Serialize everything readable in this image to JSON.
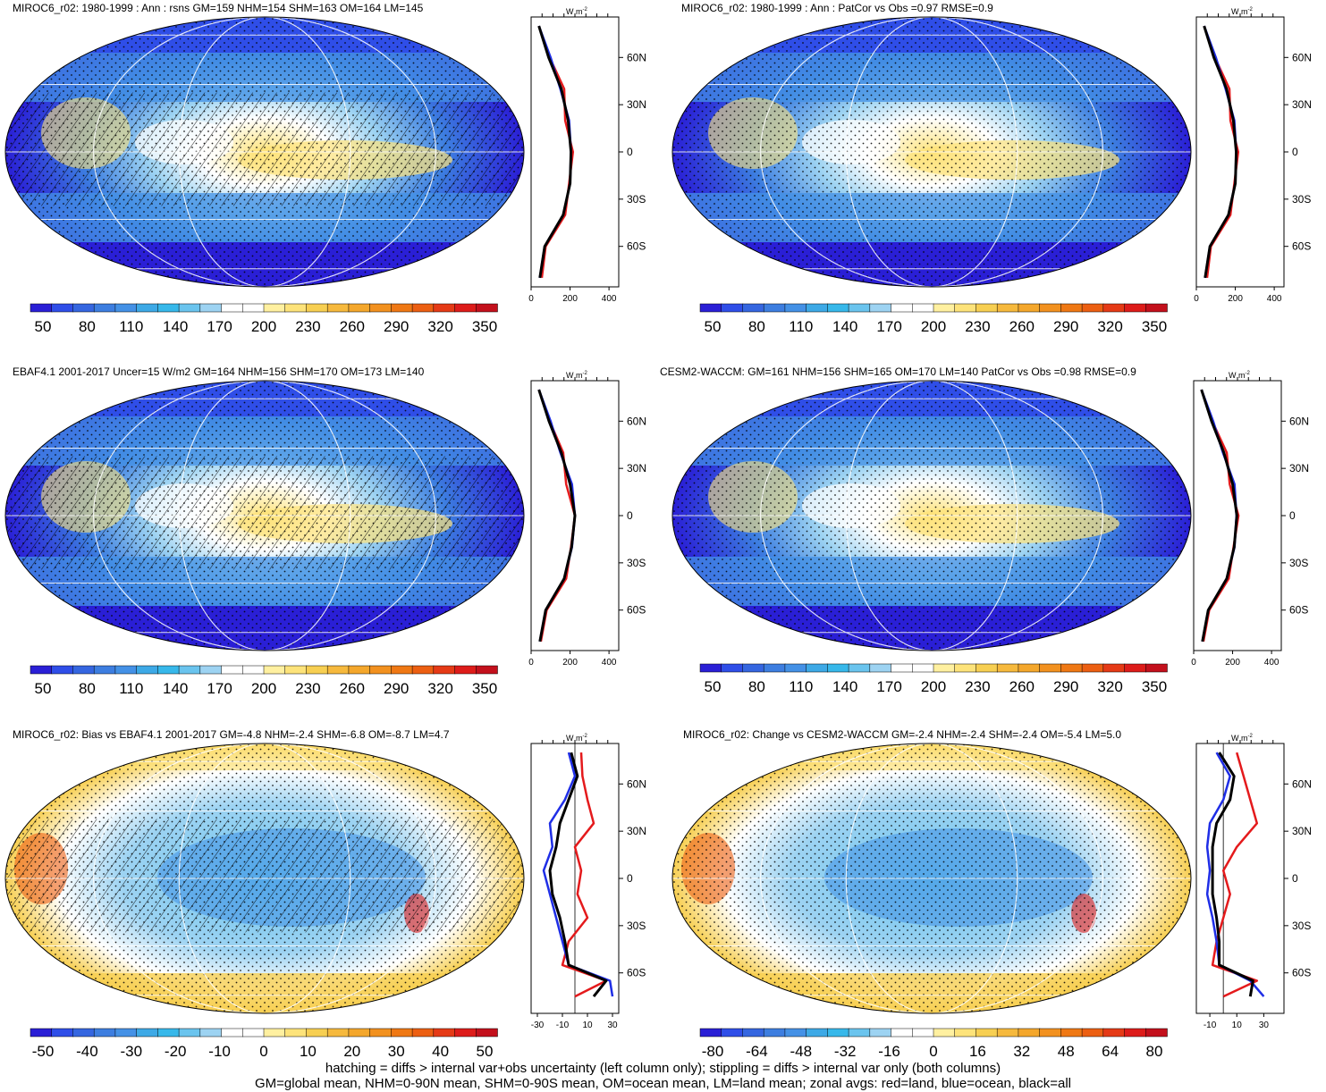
{
  "panels": [
    {
      "title": "MIROC6_r02: 1980-1999 : Ann : rsns GM=159 NHM=154 SHM=163 OM=164 LM=145",
      "kind": "clim",
      "hatch": "mid",
      "stipple": true
    },
    {
      "title": "MIROC6_r02: 1980-1999 : Ann : PatCor vs Obs =0.97 RMSE=0.9",
      "kind": "clim",
      "hatch": "none",
      "stipple": true
    },
    {
      "title": "EBAF4.1 2001-2017 Uncer=15 W/m2 GM=164 NHM=156 SHM=170 OM=173 LM=140",
      "kind": "clim",
      "hatch": "mid",
      "stipple": true
    },
    {
      "title": "CESM2-WACCM: GM=161 NHM=156 SHM=165 OM=170 LM=140 PatCor vs Obs =0.98 RMSE=0.9",
      "kind": "clim",
      "hatch": "none",
      "stipple": true
    },
    {
      "title": "MIROC6_r02: Bias vs EBAF4.1 2001-2017 GM=-4.8 NHM=-2.4 SHM=-6.8 OM=-8.7 LM=4.7",
      "kind": "diff",
      "hatch": "mid",
      "stipple": true
    },
    {
      "title": "MIROC6_r02: Change vs CESM2-WACCM GM=-2.4 NHM=-2.4 SHM=-2.4 OM=-5.4 LM=5.0",
      "kind": "diff",
      "hatch": "none",
      "stipple": true
    }
  ],
  "colorbars": {
    "clim": {
      "colors": [
        "#2a1fd6",
        "#2f4ee8",
        "#3566e0",
        "#3d7ee0",
        "#4491e6",
        "#3da9e6",
        "#37b8ea",
        "#6ac4ee",
        "#9dd3f2",
        "#ffffff",
        "#ffffff",
        "#fff0a0",
        "#fde37a",
        "#f7cf52",
        "#f6b93d",
        "#f4a72c",
        "#f2911f",
        "#ef7814",
        "#ec5f12",
        "#e53a16",
        "#dd1c1a",
        "#c3101c"
      ],
      "labels": [
        "50",
        "80",
        "110",
        "140",
        "170",
        "200",
        "230",
        "260",
        "290",
        "320",
        "350"
      ]
    },
    "diff_left": {
      "colors": [
        "#2a1fd6",
        "#2f4ee8",
        "#3566e0",
        "#3d7ee0",
        "#4491e6",
        "#3da9e6",
        "#37b8ea",
        "#6ac4ee",
        "#9dd3f2",
        "#ffffff",
        "#ffffff",
        "#fff0a0",
        "#fde37a",
        "#f7cf52",
        "#f6b93d",
        "#f4a72c",
        "#f2911f",
        "#ef7814",
        "#ec5f12",
        "#e53a16",
        "#dd1c1a",
        "#c3101c"
      ],
      "labels": [
        "-50",
        "-40",
        "-30",
        "-20",
        "-10",
        "0",
        "10",
        "20",
        "30",
        "40",
        "50"
      ]
    },
    "diff_right": {
      "colors": [
        "#2a1fd6",
        "#2f4ee8",
        "#3566e0",
        "#3d7ee0",
        "#4491e6",
        "#3da9e6",
        "#37b8ea",
        "#6ac4ee",
        "#9dd3f2",
        "#ffffff",
        "#ffffff",
        "#fff0a0",
        "#fde37a",
        "#f7cf52",
        "#f6b93d",
        "#f4a72c",
        "#f2911f",
        "#ef7814",
        "#ec5f12",
        "#e53a16",
        "#dd1c1a",
        "#c3101c"
      ],
      "labels": [
        "-80",
        "-64",
        "-48",
        "-32",
        "-16",
        "0",
        "16",
        "32",
        "48",
        "64",
        "80"
      ]
    }
  },
  "zonal": {
    "unit": "W m",
    "unit_sup": "-2",
    "lat_labels": [
      "60N",
      "30N",
      "0",
      "30S",
      "60S"
    ],
    "clim_ticks": [
      "0",
      "200",
      "400"
    ],
    "diff_ticks_left": [
      "-30",
      "-10",
      "10",
      "30"
    ],
    "diff_ticks_right": [
      "-10",
      "10",
      "30"
    ],
    "series_colors": {
      "land": "#e41a1c",
      "ocean": "#1f2ee6",
      "all": "#000000"
    }
  },
  "chart_data": [
    {
      "type": "line",
      "title": "MIROC6_r02: 1980-1999 : Ann : rsns GM=159 NHM=154 SHM=163 OM=164 LM=145",
      "xlabel": "W m-2",
      "xlim": [
        0,
        450
      ],
      "y": [
        80,
        60,
        40,
        20,
        0,
        -20,
        -40,
        -60,
        -80
      ],
      "series": [
        {
          "values": [
            40,
            95,
            170,
            175,
            215,
            195,
            175,
            75,
            55
          ]
        },
        {
          "values": [
            40,
            100,
            150,
            195,
            205,
            200,
            165,
            70,
            45
          ]
        },
        {
          "values": [
            40,
            90,
            155,
            190,
            205,
            200,
            165,
            70,
            45
          ]
        }
      ]
    },
    {
      "type": "line",
      "title": "MIROC6_r02: 1980-1999 : Ann : PatCor vs Obs =0.97 RMSE=0.9",
      "xlabel": "W m-2",
      "xlim": [
        0,
        450
      ],
      "y": [
        80,
        60,
        40,
        20,
        0,
        -20,
        -40,
        -60,
        -80
      ],
      "series": [
        {
          "values": [
            40,
            95,
            170,
            175,
            215,
            195,
            175,
            75,
            55
          ]
        },
        {
          "values": [
            40,
            100,
            150,
            195,
            205,
            200,
            165,
            70,
            45
          ]
        },
        {
          "values": [
            40,
            90,
            155,
            190,
            205,
            200,
            165,
            70,
            45
          ]
        }
      ]
    },
    {
      "type": "line",
      "title": "EBAF4.1 2001-2017 Uncer=15 W/m2 GM=164 NHM=156 SHM=170 OM=173 LM=140",
      "xlabel": "W m-2",
      "xlim": [
        0,
        450
      ],
      "y": [
        80,
        60,
        40,
        20,
        0,
        -20,
        -40,
        -60,
        -80
      ],
      "series": [
        {
          "values": [
            40,
            95,
            165,
            180,
            225,
            205,
            180,
            80,
            50
          ]
        },
        {
          "values": [
            40,
            100,
            150,
            210,
            225,
            210,
            170,
            75,
            45
          ]
        },
        {
          "values": [
            40,
            92,
            155,
            200,
            225,
            208,
            170,
            75,
            45
          ]
        }
      ]
    },
    {
      "type": "line",
      "title": "CESM2-WACCM: GM=161 NHM=156 SHM=165 OM=170 LM=140 PatCor vs Obs =0.98 RMSE=0.9",
      "xlabel": "W m-2",
      "xlim": [
        0,
        450
      ],
      "y": [
        80,
        60,
        40,
        20,
        0,
        -20,
        -40,
        -60,
        -80
      ],
      "series": [
        {
          "values": [
            40,
            95,
            170,
            185,
            230,
            205,
            180,
            80,
            50
          ]
        },
        {
          "values": [
            40,
            100,
            150,
            210,
            220,
            210,
            170,
            75,
            45
          ]
        },
        {
          "values": [
            40,
            92,
            155,
            200,
            222,
            208,
            170,
            75,
            45
          ]
        }
      ]
    },
    {
      "type": "line",
      "title": "MIROC6_r02: Bias vs EBAF4.1 2001-2017 GM=-4.8 NHM=-2.4 SHM=-6.8 OM=-8.7 LM=4.7",
      "xlabel": "W m-2",
      "xlim": [
        -35,
        35
      ],
      "y": [
        80,
        65,
        50,
        35,
        20,
        5,
        -10,
        -25,
        -40,
        -55,
        -65,
        -75
      ],
      "series": [
        {
          "values": [
            5,
            6,
            10,
            15,
            0,
            5,
            2,
            10,
            -5,
            -10,
            25,
            0
          ]
        },
        {
          "values": [
            -5,
            0,
            -8,
            -20,
            -18,
            -25,
            -20,
            -15,
            -10,
            -5,
            28,
            30
          ]
        },
        {
          "values": [
            -3,
            2,
            -5,
            -12,
            -15,
            -20,
            -18,
            -12,
            -8,
            -5,
            25,
            15
          ]
        }
      ]
    },
    {
      "type": "line",
      "title": "MIROC6_r02: Change vs CESM2-WACCM GM=-2.4 NHM=-2.4 SHM=-2.4 OM=-5.4 LM=5.0",
      "xlabel": "W m-2",
      "xlim": [
        -20,
        45
      ],
      "y": [
        80,
        65,
        50,
        35,
        20,
        5,
        -10,
        -25,
        -40,
        -55,
        -65,
        -75
      ],
      "series": [
        {
          "values": [
            10,
            15,
            20,
            25,
            10,
            0,
            5,
            0,
            -5,
            -8,
            25,
            0
          ]
        },
        {
          "values": [
            -5,
            5,
            0,
            -10,
            -12,
            -10,
            -12,
            -8,
            -5,
            -3,
            20,
            30
          ]
        },
        {
          "values": [
            -3,
            8,
            5,
            -5,
            -8,
            -8,
            -8,
            -5,
            -3,
            -3,
            22,
            20
          ]
        }
      ]
    }
  ],
  "caption": {
    "line1": "hatching = diffs > internal var+obs uncertainty (left column only); stippling = diffs > internal var only (both columns)",
    "line2": "GM=global mean, NHM=0-90N mean, SHM=0-90S mean, OM=ocean mean, LM=land mean; zonal avgs: red=land, blue=ocean, black=all"
  }
}
